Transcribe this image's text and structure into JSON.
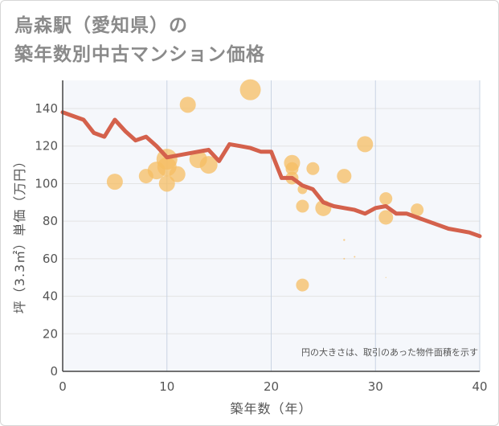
{
  "title_line1": "烏森駅（愛知県）の",
  "title_line2": "築年数別中古マンション価格",
  "colors": {
    "bubble": "#f5bd63",
    "line": "#d4614c",
    "grid": "#e3e3e3",
    "axis": "#444444",
    "plot_bg": "#f5f7fb",
    "vgrid": "#c9d4e3"
  },
  "chart_data": {
    "type": "scatter",
    "title": "烏森駅（愛知県）の 築年数別中古マンション価格",
    "xlabel": "築年数（年）",
    "ylabel": "坪（3.3㎡）単価（万円）",
    "note": "円の大きさは、取引のあった物件面積を示す",
    "xlim": [
      0,
      40
    ],
    "ylim": [
      0,
      155
    ],
    "x_ticks": [
      0,
      10,
      20,
      30,
      40
    ],
    "y_ticks": [
      0,
      20,
      40,
      60,
      80,
      100,
      120,
      140
    ],
    "grid": true,
    "bubbles": [
      {
        "x": 5,
        "y": 101,
        "r": 10
      },
      {
        "x": 8,
        "y": 104,
        "r": 9
      },
      {
        "x": 9,
        "y": 107,
        "r": 11
      },
      {
        "x": 10,
        "y": 113,
        "r": 13
      },
      {
        "x": 10,
        "y": 109,
        "r": 12
      },
      {
        "x": 10,
        "y": 100,
        "r": 10
      },
      {
        "x": 11,
        "y": 105,
        "r": 10
      },
      {
        "x": 12,
        "y": 142,
        "r": 10
      },
      {
        "x": 13,
        "y": 113,
        "r": 11
      },
      {
        "x": 14,
        "y": 110,
        "r": 11
      },
      {
        "x": 18,
        "y": 150,
        "r": 13
      },
      {
        "x": 22,
        "y": 111,
        "r": 10
      },
      {
        "x": 22,
        "y": 108,
        "r": 8
      },
      {
        "x": 22,
        "y": 103,
        "r": 8
      },
      {
        "x": 23,
        "y": 97,
        "r": 6
      },
      {
        "x": 23,
        "y": 88,
        "r": 8
      },
      {
        "x": 23,
        "y": 46,
        "r": 8
      },
      {
        "x": 24,
        "y": 108,
        "r": 8
      },
      {
        "x": 25,
        "y": 87,
        "r": 10
      },
      {
        "x": 27,
        "y": 104,
        "r": 9
      },
      {
        "x": 27,
        "y": 70,
        "r": 1.2
      },
      {
        "x": 27,
        "y": 60,
        "r": 1
      },
      {
        "x": 28,
        "y": 61,
        "r": 1
      },
      {
        "x": 29,
        "y": 121,
        "r": 10
      },
      {
        "x": 31,
        "y": 92,
        "r": 8
      },
      {
        "x": 31,
        "y": 82,
        "r": 9
      },
      {
        "x": 31,
        "y": 50,
        "r": 0.6
      },
      {
        "x": 34,
        "y": 86,
        "r": 8
      }
    ],
    "series": [
      {
        "x": [
          0,
          1,
          2,
          3,
          4,
          5,
          6,
          7,
          8,
          9,
          10,
          11,
          12,
          13,
          14,
          15,
          16,
          17,
          18,
          19,
          20,
          21,
          22,
          23,
          24,
          25,
          26,
          27,
          28,
          29,
          30,
          31,
          32,
          33,
          34,
          35,
          36,
          37,
          38,
          39,
          40
        ],
        "values": [
          138,
          136,
          134,
          127,
          125,
          134,
          128,
          123,
          125,
          120,
          114,
          115,
          116,
          117,
          118,
          112,
          121,
          120,
          119,
          117,
          117,
          103,
          103,
          99,
          97,
          90,
          88,
          87,
          86,
          84,
          87,
          88,
          84,
          84,
          82,
          80,
          78,
          76,
          75,
          74,
          72
        ]
      }
    ]
  }
}
